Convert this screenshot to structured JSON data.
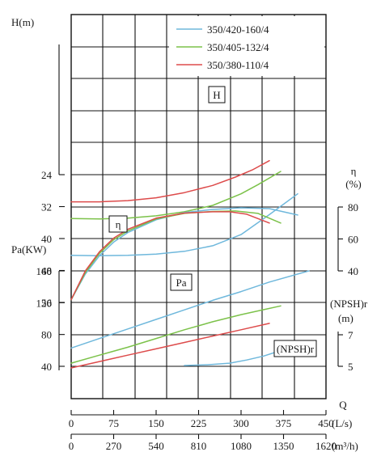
{
  "chart_data": {
    "type": "line",
    "legend_position": "top-right",
    "grid": true,
    "series_meta": [
      {
        "name": "350/420-160/4",
        "color": "#6fb8dc"
      },
      {
        "name": "350/405-132/4",
        "color": "#7cc24a"
      },
      {
        "name": "350/380-110/4",
        "color": "#dd4b4b"
      }
    ],
    "axes": {
      "Q_label": "Q",
      "Q_ls_unit": "(L/s)",
      "Q_ls_ticks": [
        "0",
        "75",
        "150",
        "225",
        "300",
        "375",
        "450"
      ],
      "Q_ls_range": [
        0,
        450
      ],
      "Q_m3h_unit": "(m³/h)",
      "Q_m3h_ticks": [
        "0",
        "270",
        "540",
        "810",
        "1080",
        "1350",
        "1620"
      ],
      "H_label": "H(m)",
      "H_ticks": [
        "24",
        "32",
        "40",
        "48",
        "56"
      ],
      "H_range": [
        24,
        56
      ],
      "eta_label": "η",
      "eta_unit": "(%)",
      "eta_ticks": [
        "40",
        "60",
        "80"
      ],
      "eta_range": [
        40,
        80
      ],
      "Pa_label": "Pa(KW)",
      "Pa_ticks": [
        "40",
        "80",
        "120",
        "160"
      ],
      "Pa_range": [
        40,
        160
      ],
      "npsh_label": "(NPSH)r",
      "npsh_unit": "(m)",
      "npsh_ticks": [
        "5",
        "7"
      ],
      "npsh_range": [
        5,
        7
      ]
    },
    "curve_labels": {
      "H": "H",
      "eta": "η",
      "Pa": "Pa",
      "npsh": "(NPSH)r"
    },
    "H": [
      {
        "series": "350/420-160/4",
        "x": [
          0,
          50,
          100,
          150,
          200,
          250,
          300,
          350,
          400
        ],
        "y": [
          44.2,
          44.3,
          44.2,
          43.9,
          43.2,
          41.8,
          39.0,
          34.0,
          28.8
        ]
      },
      {
        "series": "350/405-132/4",
        "x": [
          0,
          50,
          100,
          150,
          200,
          250,
          300,
          330,
          370
        ],
        "y": [
          35.0,
          35.1,
          34.9,
          34.3,
          33.3,
          31.7,
          28.8,
          26.5,
          23.2
        ]
      },
      {
        "series": "350/380-110/4",
        "x": [
          0,
          50,
          100,
          150,
          200,
          250,
          290,
          320,
          350
        ],
        "y": [
          30.8,
          30.8,
          30.5,
          29.8,
          28.5,
          26.7,
          24.6,
          22.8,
          20.5
        ]
      }
    ],
    "eta": [
      {
        "series": "350/420-160/4",
        "x": [
          0,
          25,
          50,
          75,
          100,
          150,
          200,
          250,
          300,
          350,
          400
        ],
        "y": [
          22,
          38,
          49.5,
          58,
          64,
          72,
          76.5,
          78.5,
          79.5,
          79,
          75
        ]
      },
      {
        "series": "350/405-132/4",
        "x": [
          0,
          25,
          50,
          75,
          100,
          150,
          200,
          250,
          290,
          330,
          370
        ],
        "y": [
          22,
          39,
          51,
          59.5,
          65,
          72.5,
          76,
          77.2,
          77.5,
          76,
          70
        ]
      },
      {
        "series": "350/380-110/4",
        "x": [
          0,
          25,
          50,
          75,
          100,
          150,
          200,
          250,
          280,
          310,
          350
        ],
        "y": [
          22,
          40,
          52,
          60.5,
          66,
          73,
          76.2,
          77,
          77,
          75.5,
          70
        ]
      }
    ],
    "Pa": [
      {
        "series": "350/420-160/4",
        "x": [
          0,
          50,
          100,
          150,
          200,
          250,
          300,
          350,
          420
        ],
        "y": [
          63,
          75,
          87,
          99,
          111,
          123,
          134,
          146,
          160
        ]
      },
      {
        "series": "350/405-132/4",
        "x": [
          0,
          50,
          100,
          150,
          200,
          250,
          300,
          370
        ],
        "y": [
          44,
          54,
          64,
          75,
          86,
          96,
          105,
          116
        ]
      },
      {
        "series": "350/380-110/4",
        "x": [
          0,
          50,
          100,
          150,
          200,
          250,
          300,
          350
        ],
        "y": [
          38,
          46,
          54,
          62,
          70,
          78,
          86,
          94
        ]
      }
    ],
    "npsh": [
      {
        "series": "350/420-160/4",
        "x": [
          200,
          240,
          280,
          310,
          340,
          370
        ],
        "y": [
          5.05,
          5.1,
          5.2,
          5.4,
          5.65,
          6.0
        ]
      }
    ]
  }
}
